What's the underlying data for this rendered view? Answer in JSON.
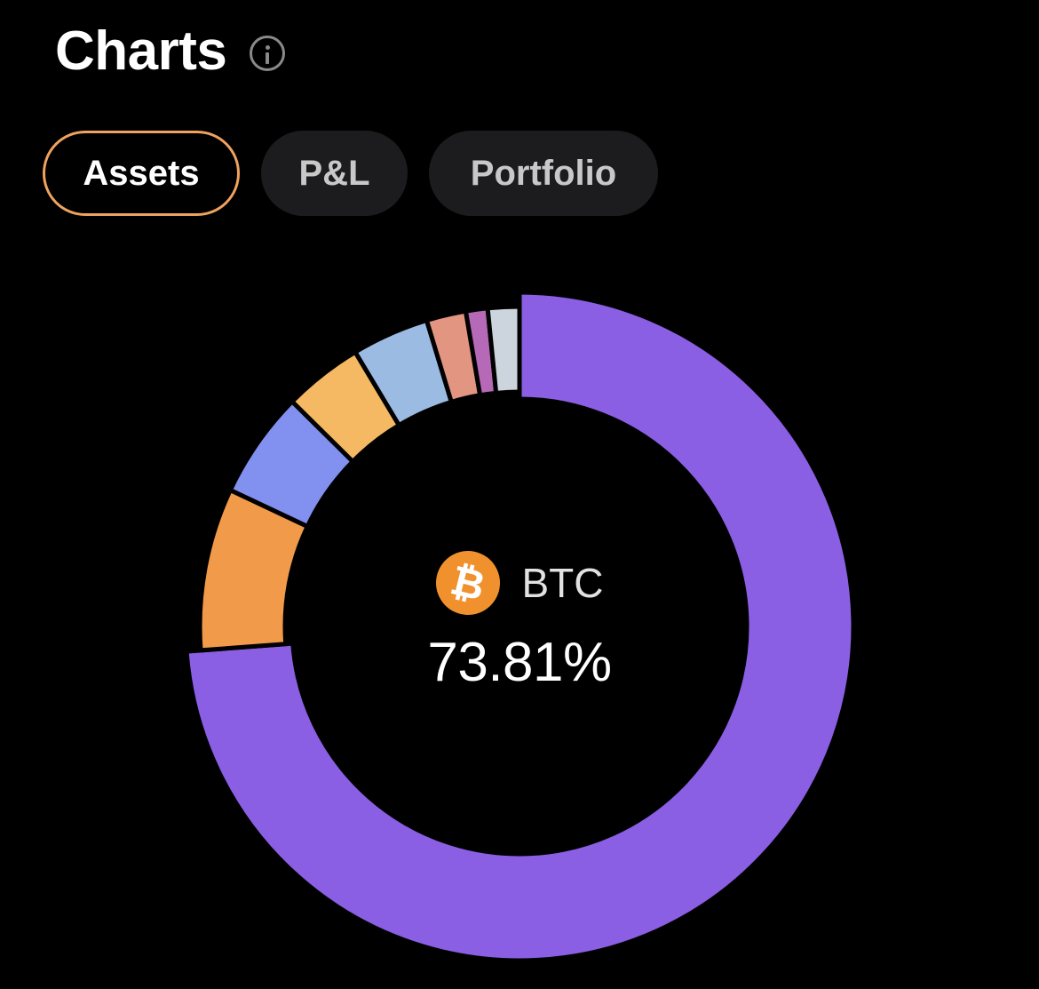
{
  "header": {
    "title": "Charts",
    "info_icon": "info-icon"
  },
  "tabs": [
    {
      "label": "Assets",
      "active": true
    },
    {
      "label": "P&L",
      "active": false
    },
    {
      "label": "Portfolio",
      "active": false
    }
  ],
  "accent_color": "#f0a25e",
  "chart_data": {
    "type": "pie",
    "donut": true,
    "title": "",
    "slices": [
      {
        "value": 73.81,
        "color": "#8a5fe3"
      },
      {
        "value": 8.2,
        "color": "#f09a4a"
      },
      {
        "value": 5.4,
        "color": "#8290ef"
      },
      {
        "value": 4.0,
        "color": "#f4b962"
      },
      {
        "value": 3.9,
        "color": "#9bbbe3"
      },
      {
        "value": 2.0,
        "color": "#e29580"
      },
      {
        "value": 1.1,
        "color": "#b569b7"
      },
      {
        "value": 1.59,
        "color": "#ccd4dd"
      }
    ]
  },
  "center": {
    "icon": "bitcoin-icon",
    "icon_glyph": "₿",
    "symbol": "BTC",
    "percent": "73.81%"
  }
}
